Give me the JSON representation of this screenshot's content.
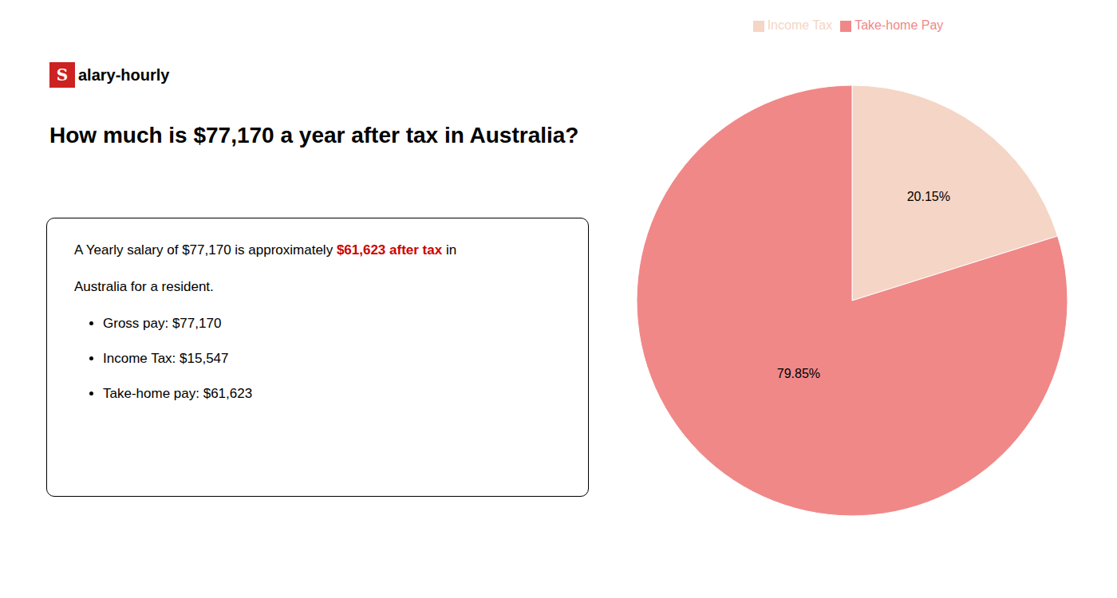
{
  "chart_data": {
    "type": "pie",
    "title": "How much is $77,170 a year after tax in Australia?",
    "categories": [
      "Income Tax",
      "Take-home Pay"
    ],
    "values": [
      20.15,
      79.85
    ],
    "value_labels": [
      "20.15%",
      "79.85%"
    ],
    "colors": [
      "#f5d5c5",
      "#f08888"
    ],
    "data_labels": true,
    "legend": "top",
    "annotations": {
      "logo": {
        "box_text": "S",
        "text": "alary-hourly",
        "color": "#cc2222"
      },
      "summary": [
        [
          {
            "text": "A Yearly salary of $77,170 is approximately "
          },
          {
            "text": "$61,623 after tax",
            "color": "#cc0000"
          },
          {
            "text": " in"
          }
        ],
        [
          {
            "text": "Australia for a resident."
          }
        ]
      ],
      "bullets": [
        "Gross pay: $77,170",
        "Income Tax: $15,547",
        "Take-home pay: $61,623"
      ]
    }
  }
}
